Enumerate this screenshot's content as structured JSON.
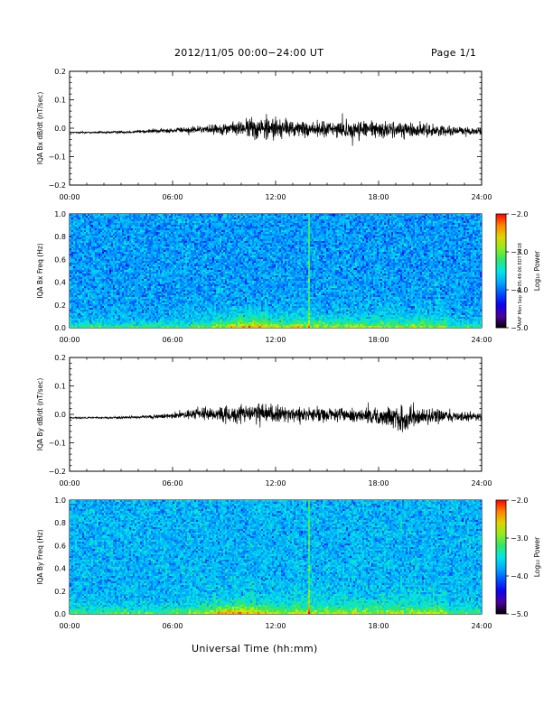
{
  "header": {
    "title": "2012/11/05  00:00−24:00 UT",
    "page": "Page 1/1"
  },
  "footer": {
    "xaxis_title": "Universal Time (hh:mm)",
    "stamp": "AAF Mon Sep 10 05:49:06 EDT 2018"
  },
  "chart_data": [
    {
      "type": "line",
      "ylabel": "IQA Bx dB/dt (nT/sec)",
      "x_ticks": [
        "00:00",
        "06:00",
        "12:00",
        "18:00",
        "24:00"
      ],
      "y_ticks": [
        "0.2",
        "0.1",
        "0.0",
        "−0.1",
        "−0.2"
      ],
      "xlim": [
        0,
        24
      ],
      "ylim": [
        -0.2,
        0.2
      ],
      "series": [
        {
          "hours": [
            0,
            2,
            4,
            6,
            7,
            8,
            9,
            10,
            10.5,
            11,
            11.5,
            11.8,
            12,
            12.5,
            13,
            14,
            15,
            16,
            17,
            18,
            19,
            20,
            21,
            22,
            23,
            24
          ],
          "baseline": [
            -0.015,
            -0.015,
            -0.012,
            -0.008,
            -0.006,
            -0.004,
            -0.002,
            0.0,
            0.0,
            0.0,
            0.0,
            0.0,
            0.0,
            0.0,
            -0.002,
            -0.003,
            -0.004,
            -0.005,
            -0.005,
            -0.005,
            -0.005,
            -0.006,
            -0.007,
            -0.008,
            -0.01,
            -0.01
          ],
          "amplitude": [
            0.003,
            0.004,
            0.006,
            0.01,
            0.012,
            0.016,
            0.022,
            0.03,
            0.04,
            0.045,
            0.05,
            0.06,
            0.045,
            0.035,
            0.03,
            0.032,
            0.033,
            0.035,
            0.04,
            0.032,
            0.03,
            0.03,
            0.025,
            0.02,
            0.015,
            0.012
          ]
        }
      ]
    },
    {
      "type": "heatmap",
      "ylabel": "IQA Bx Freq (Hz)",
      "x_ticks": [
        "00:00",
        "06:00",
        "12:00",
        "18:00",
        "24:00"
      ],
      "y_ticks": [
        "1.0",
        "0.8",
        "0.6",
        "0.4",
        "0.2",
        "0.0"
      ],
      "xlim": [
        0,
        24
      ],
      "ylim": [
        0,
        1.0
      ],
      "colorbar": {
        "label": "Log₁₀ Power",
        "ticks": [
          "−2.0",
          "−3.0",
          "−4.0",
          "−5.0"
        ],
        "range": [
          -5.0,
          -2.0
        ]
      },
      "background_level": -3.85,
      "enhancement_center_hours": 10.5,
      "vertical_line_hours": 14.0
    },
    {
      "type": "line",
      "ylabel": "IQA By dB/dt (nT/sec)",
      "x_ticks": [
        "00:00",
        "06:00",
        "12:00",
        "18:00",
        "24:00"
      ],
      "y_ticks": [
        "0.2",
        "0.1",
        "0.0",
        "−0.1",
        "−0.2"
      ],
      "xlim": [
        0,
        24
      ],
      "ylim": [
        -0.2,
        0.2
      ],
      "series": [
        {
          "hours": [
            0,
            2,
            4,
            5,
            6,
            7,
            8,
            9,
            10,
            11,
            12,
            13,
            14,
            15,
            16,
            17,
            18,
            19,
            19.5,
            20,
            21,
            22,
            23,
            24
          ],
          "baseline": [
            -0.012,
            -0.012,
            -0.01,
            -0.008,
            -0.004,
            0.0,
            0.0,
            0.0,
            0.0,
            0.0,
            0.0,
            0.0,
            0.0,
            0.0,
            -0.002,
            -0.003,
            -0.005,
            -0.01,
            -0.015,
            -0.012,
            -0.008,
            -0.005,
            -0.006,
            -0.008
          ],
          "amplitude": [
            0.003,
            0.004,
            0.006,
            0.008,
            0.012,
            0.018,
            0.024,
            0.03,
            0.035,
            0.04,
            0.035,
            0.03,
            0.03,
            0.03,
            0.028,
            0.03,
            0.03,
            0.038,
            0.05,
            0.04,
            0.03,
            0.025,
            0.018,
            0.012
          ]
        }
      ]
    },
    {
      "type": "heatmap",
      "ylabel": "IQA By Freq (Hz)",
      "x_ticks": [
        "00:00",
        "06:00",
        "12:00",
        "18:00",
        "24:00"
      ],
      "y_ticks": [
        "1.0",
        "0.8",
        "0.6",
        "0.4",
        "0.2",
        "0.0"
      ],
      "xlim": [
        0,
        24
      ],
      "ylim": [
        0,
        1.0
      ],
      "colorbar": {
        "label": "Log₁₀ Power",
        "ticks": [
          "−2.0",
          "−3.0",
          "−4.0",
          "−5.0"
        ],
        "range": [
          -5.0,
          -2.0
        ]
      },
      "background_level": -3.75,
      "enhancement_center_hours": 10.0,
      "vertical_line_hours": 14.0
    }
  ]
}
